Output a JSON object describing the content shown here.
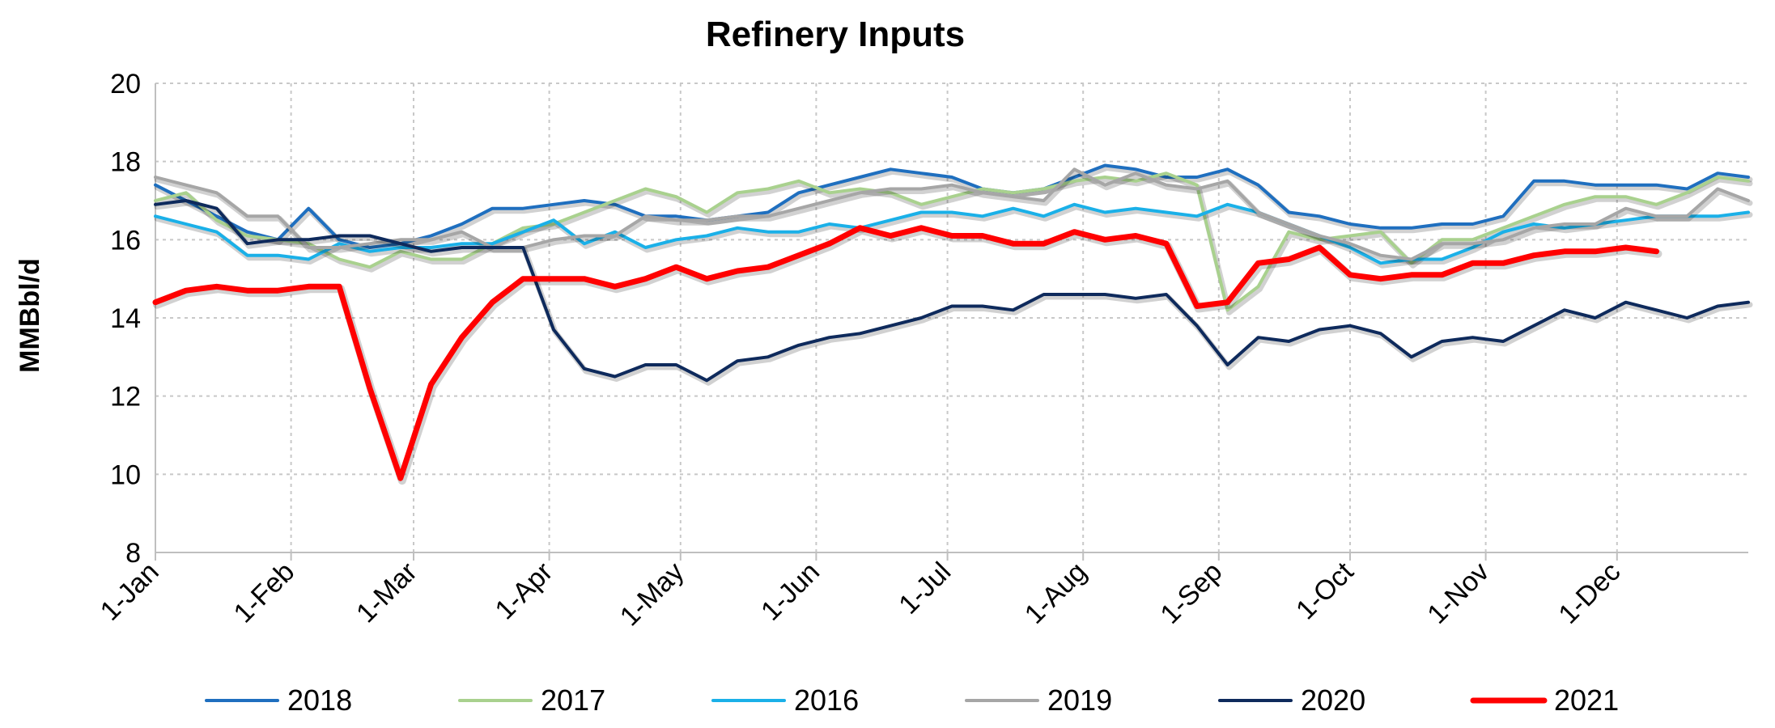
{
  "chart_data": {
    "type": "line",
    "title": "Refinery Inputs",
    "ylabel": "MMBbl/d",
    "xlabel": "",
    "ylim": [
      8,
      20
    ],
    "yticks": [
      8,
      10,
      12,
      14,
      16,
      18,
      20
    ],
    "x_domain_days": [
      1,
      365
    ],
    "xticks": [
      {
        "label": "1-Jan",
        "day": 1
      },
      {
        "label": "1-Feb",
        "day": 32
      },
      {
        "label": "1-Mar",
        "day": 60
      },
      {
        "label": "1-Apr",
        "day": 91
      },
      {
        "label": "1-May",
        "day": 121
      },
      {
        "label": "1-Jun",
        "day": 152
      },
      {
        "label": "1-Jul",
        "day": 182
      },
      {
        "label": "1-Aug",
        "day": 213
      },
      {
        "label": "1-Sep",
        "day": 244
      },
      {
        "label": "1-Oct",
        "day": 274
      },
      {
        "label": "1-Nov",
        "day": 305
      },
      {
        "label": "1-Dec",
        "day": 335
      }
    ],
    "grid": true,
    "legend_position": "bottom",
    "series": [
      {
        "name": "2018",
        "color": "#1f6fbf",
        "width": 4,
        "x": [
          1,
          8,
          15,
          22,
          29,
          36,
          43,
          50,
          57,
          64,
          71,
          78,
          85,
          92,
          99,
          106,
          113,
          120,
          127,
          134,
          141,
          148,
          155,
          162,
          169,
          176,
          183,
          190,
          197,
          204,
          211,
          218,
          225,
          232,
          239,
          246,
          253,
          260,
          267,
          274,
          281,
          288,
          295,
          302,
          309,
          316,
          323,
          330,
          337,
          344,
          351,
          358,
          365
        ],
        "values": [
          17.4,
          17.0,
          16.6,
          16.2,
          16.0,
          16.8,
          16.0,
          15.8,
          15.9,
          16.1,
          16.4,
          16.8,
          16.8,
          16.9,
          17.0,
          16.9,
          16.6,
          16.6,
          16.5,
          16.6,
          16.7,
          17.2,
          17.4,
          17.6,
          17.8,
          17.7,
          17.6,
          17.3,
          17.2,
          17.3,
          17.6,
          17.9,
          17.8,
          17.6,
          17.6,
          17.8,
          17.4,
          16.7,
          16.6,
          16.4,
          16.3,
          16.3,
          16.4,
          16.4,
          16.6,
          17.5,
          17.5,
          17.4,
          17.4,
          17.4,
          17.3,
          17.7,
          17.6
        ]
      },
      {
        "name": "2017",
        "color": "#a9d18e",
        "width": 4,
        "x": [
          1,
          8,
          15,
          22,
          29,
          36,
          43,
          50,
          57,
          64,
          71,
          78,
          85,
          92,
          99,
          106,
          113,
          120,
          127,
          134,
          141,
          148,
          155,
          162,
          169,
          176,
          183,
          190,
          197,
          204,
          211,
          218,
          225,
          232,
          239,
          246,
          253,
          260,
          267,
          274,
          281,
          288,
          295,
          302,
          309,
          316,
          323,
          330,
          337,
          344,
          351,
          358,
          365
        ],
        "values": [
          17.0,
          17.2,
          16.5,
          16.1,
          16.0,
          15.9,
          15.5,
          15.3,
          15.7,
          15.5,
          15.5,
          15.9,
          16.3,
          16.4,
          16.7,
          17.0,
          17.3,
          17.1,
          16.7,
          17.2,
          17.3,
          17.5,
          17.2,
          17.3,
          17.2,
          16.9,
          17.1,
          17.3,
          17.2,
          17.3,
          17.5,
          17.6,
          17.5,
          17.7,
          17.4,
          14.2,
          14.8,
          16.2,
          16.0,
          16.1,
          16.2,
          15.4,
          16.0,
          16.0,
          16.3,
          16.6,
          16.9,
          17.1,
          17.1,
          16.9,
          17.2,
          17.6,
          17.5
        ]
      },
      {
        "name": "2016",
        "color": "#1ab0e8",
        "width": 4,
        "x": [
          1,
          8,
          15,
          22,
          29,
          36,
          43,
          50,
          57,
          64,
          71,
          78,
          85,
          92,
          99,
          106,
          113,
          120,
          127,
          134,
          141,
          148,
          155,
          162,
          169,
          176,
          183,
          190,
          197,
          204,
          211,
          218,
          225,
          232,
          239,
          246,
          253,
          260,
          267,
          274,
          281,
          288,
          295,
          302,
          309,
          316,
          323,
          330,
          337,
          344,
          351,
          358,
          365
        ],
        "values": [
          16.6,
          16.4,
          16.2,
          15.6,
          15.6,
          15.5,
          15.9,
          15.7,
          15.8,
          15.8,
          15.9,
          15.9,
          16.2,
          16.5,
          15.9,
          16.2,
          15.8,
          16.0,
          16.1,
          16.3,
          16.2,
          16.2,
          16.4,
          16.3,
          16.5,
          16.7,
          16.7,
          16.6,
          16.8,
          16.6,
          16.9,
          16.7,
          16.8,
          16.7,
          16.6,
          16.9,
          16.7,
          16.4,
          16.1,
          15.8,
          15.4,
          15.5,
          15.5,
          15.8,
          16.2,
          16.4,
          16.3,
          16.4,
          16.5,
          16.6,
          16.6,
          16.6,
          16.7
        ]
      },
      {
        "name": "2019",
        "color": "#a6a6a6",
        "width": 4,
        "x": [
          1,
          8,
          15,
          22,
          29,
          36,
          43,
          50,
          57,
          64,
          71,
          78,
          85,
          92,
          99,
          106,
          113,
          120,
          127,
          134,
          141,
          148,
          155,
          162,
          169,
          176,
          183,
          190,
          197,
          204,
          211,
          218,
          225,
          232,
          239,
          246,
          253,
          260,
          267,
          274,
          281,
          288,
          295,
          302,
          309,
          316,
          323,
          330,
          337,
          344,
          351,
          358,
          365
        ],
        "values": [
          17.6,
          17.4,
          17.2,
          16.6,
          16.6,
          15.8,
          15.8,
          15.9,
          16.0,
          16.0,
          16.2,
          15.8,
          15.8,
          16.0,
          16.1,
          16.1,
          16.6,
          16.5,
          16.5,
          16.6,
          16.6,
          16.8,
          17.0,
          17.2,
          17.3,
          17.3,
          17.4,
          17.2,
          17.1,
          17.0,
          17.8,
          17.4,
          17.7,
          17.4,
          17.3,
          17.5,
          16.7,
          16.4,
          16.1,
          15.9,
          15.6,
          15.5,
          15.9,
          15.9,
          16.0,
          16.3,
          16.4,
          16.4,
          16.8,
          16.6,
          16.6,
          17.3,
          17.0
        ]
      },
      {
        "name": "2020",
        "color": "#0e2a5c",
        "width": 4,
        "x": [
          1,
          8,
          15,
          22,
          29,
          36,
          43,
          50,
          57,
          64,
          71,
          78,
          85,
          92,
          99,
          106,
          113,
          120,
          127,
          134,
          141,
          148,
          155,
          162,
          169,
          176,
          183,
          190,
          197,
          204,
          211,
          218,
          225,
          232,
          239,
          246,
          253,
          260,
          267,
          274,
          281,
          288,
          295,
          302,
          309,
          316,
          323,
          330,
          337,
          344,
          351,
          358,
          365
        ],
        "values": [
          16.9,
          17.0,
          16.8,
          15.9,
          16.0,
          16.0,
          16.1,
          16.1,
          15.9,
          15.7,
          15.8,
          15.8,
          15.8,
          13.7,
          12.7,
          12.5,
          12.8,
          12.8,
          12.4,
          12.9,
          13.0,
          13.3,
          13.5,
          13.6,
          13.8,
          14.0,
          14.3,
          14.3,
          14.2,
          14.6,
          14.6,
          14.6,
          14.5,
          14.6,
          13.8,
          12.8,
          13.5,
          13.4,
          13.7,
          13.8,
          13.6,
          13.0,
          13.4,
          13.5,
          13.4,
          13.8,
          14.2,
          14.0,
          14.4,
          14.2,
          14.0,
          14.3,
          14.4
        ]
      },
      {
        "name": "2021",
        "color": "#ff0000",
        "width": 7,
        "x": [
          1,
          8,
          15,
          22,
          29,
          36,
          43,
          50,
          57,
          64,
          71,
          78,
          85,
          92,
          99,
          106,
          113,
          120,
          127,
          134,
          141,
          148,
          155,
          162,
          169,
          176,
          183,
          190,
          197,
          204,
          211,
          218,
          225,
          232,
          239,
          246,
          253,
          260,
          267,
          274,
          281,
          288,
          295,
          302,
          309,
          316,
          323,
          330,
          337,
          344
        ],
        "values": [
          14.4,
          14.7,
          14.8,
          14.7,
          14.7,
          14.8,
          14.8,
          12.2,
          9.9,
          12.3,
          13.5,
          14.4,
          15.0,
          15.0,
          15.0,
          14.8,
          15.0,
          15.3,
          15.0,
          15.2,
          15.3,
          15.6,
          15.9,
          16.3,
          16.1,
          16.3,
          16.1,
          16.1,
          15.9,
          15.9,
          16.2,
          16.0,
          16.1,
          15.9,
          14.3,
          14.4,
          15.4,
          15.5,
          15.8,
          15.1,
          15.0,
          15.1,
          15.1,
          15.4,
          15.4,
          15.6,
          15.7,
          15.7,
          15.8,
          15.7
        ]
      }
    ]
  }
}
